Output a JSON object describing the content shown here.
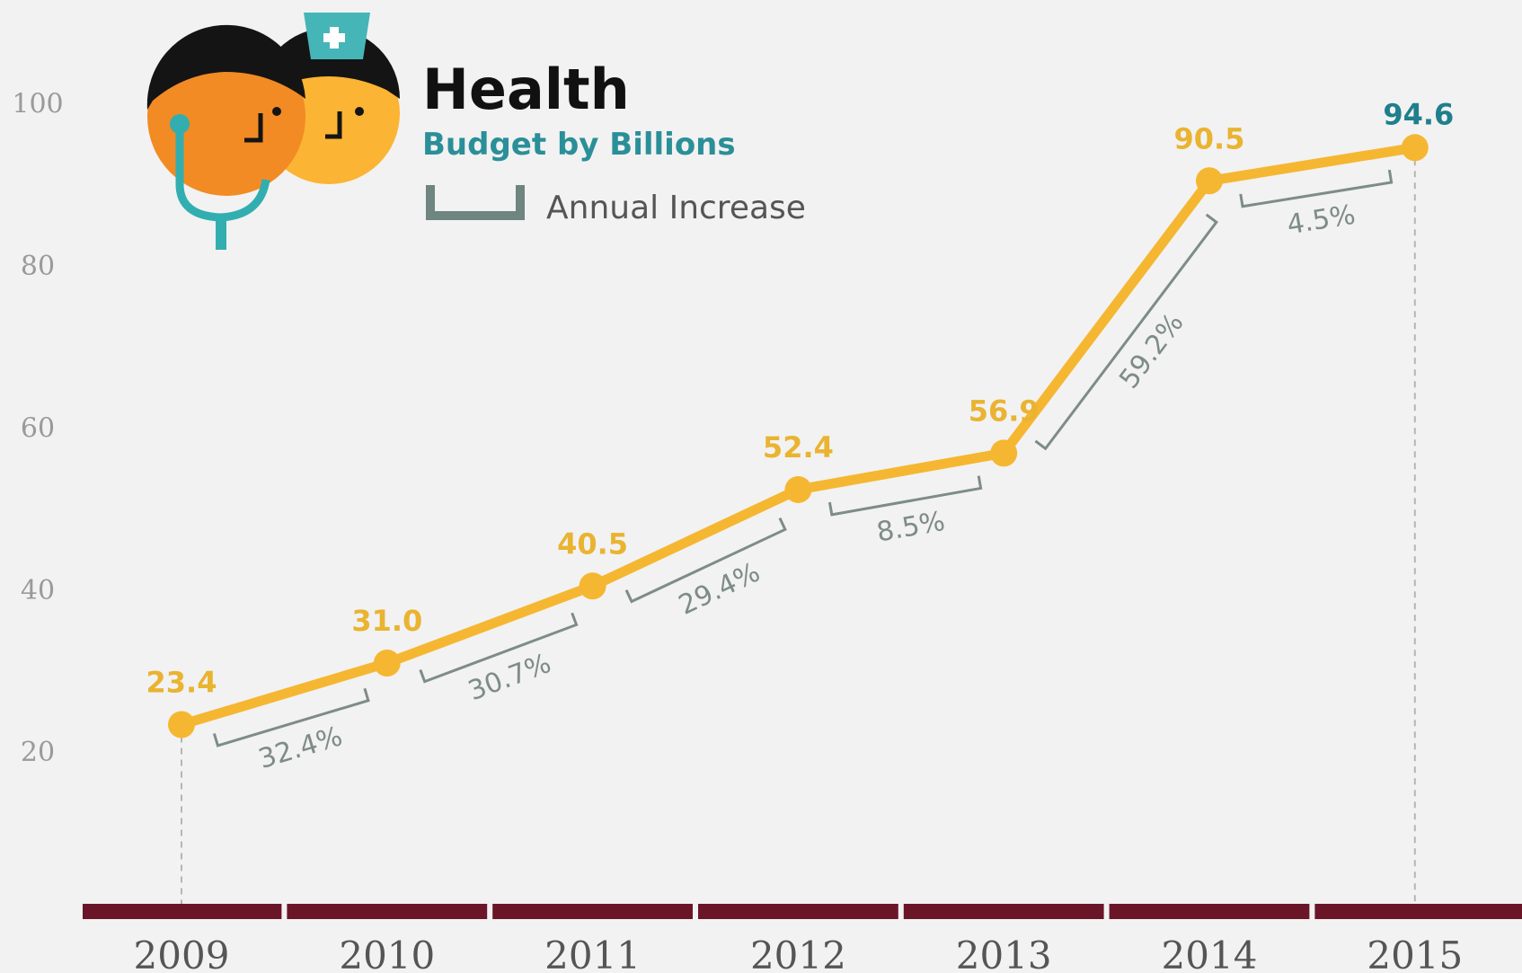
{
  "chart_data": {
    "type": "line",
    "title": "Health",
    "subtitle": "Budget by Billions",
    "legend": {
      "label": "Annual Increase",
      "placement": "top-left"
    },
    "x": [
      "2009",
      "2010",
      "2011",
      "2012",
      "2013",
      "2014",
      "2015"
    ],
    "series": [
      {
        "values": [
          23.4,
          31.0,
          40.5,
          52.4,
          56.9,
          90.5,
          94.6
        ],
        "labels": [
          "23.4",
          "31.0",
          "40.5",
          "52.4",
          "56.9",
          "90.5",
          "94.6"
        ]
      }
    ],
    "annual_increase": [
      "32.4%",
      "30.7%",
      "29.4%",
      "8.5%",
      "59.2%",
      "4.5%"
    ],
    "yticks": [
      20,
      40,
      60,
      80,
      100
    ],
    "ytick_labels": [
      "20",
      "40",
      "60",
      "80",
      "100"
    ],
    "ylim": [
      0,
      100
    ],
    "grid": false,
    "colors": {
      "line": "#f5b731",
      "value_label": "#eab330",
      "highlight_label": "#1f7f8c",
      "bracket": "#7e8c88",
      "axis_bar": "#6b1628",
      "subtitle": "#2a8f98",
      "background": "#f2f2f2"
    },
    "icons": [
      "doctor-face-icon",
      "nurse-face-icon",
      "stethoscope-icon"
    ]
  }
}
